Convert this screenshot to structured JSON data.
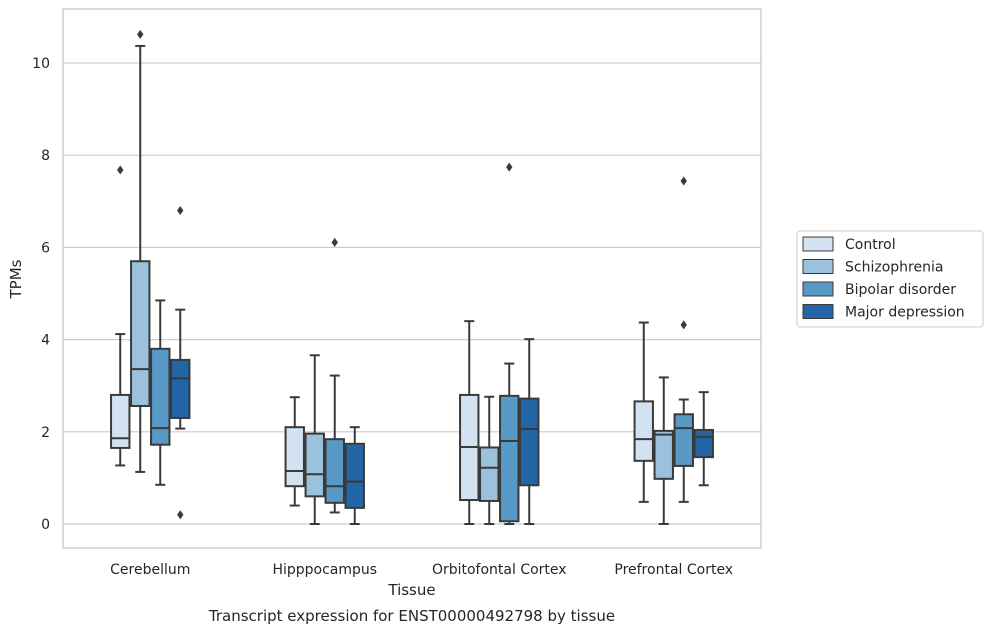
{
  "chart_data": {
    "type": "boxplot",
    "xlabel": "Tissue",
    "ylabel": "TPMs",
    "caption": "Transcript expression for ENST00000492798 by tissue",
    "ylim": [
      -0.5,
      11.2
    ],
    "yticks": [
      0,
      2,
      4,
      6,
      8,
      10
    ],
    "grid": "horizontal",
    "legend_position": "right",
    "categories": [
      "Cerebellum",
      "Hipppocampus",
      "Orbitofontal Cortex",
      "Prefrontal Cortex"
    ],
    "series": [
      {
        "name": "Control",
        "color": "#d3e2f1",
        "boxes": [
          {
            "whislo": 1.27,
            "q1": 1.65,
            "med": 1.86,
            "q3": 2.8,
            "whishi": 4.12,
            "fliers": [
              7.68
            ]
          },
          {
            "whislo": 0.4,
            "q1": 0.82,
            "med": 1.15,
            "q3": 2.1,
            "whishi": 2.75,
            "fliers": []
          },
          {
            "whislo": 0.0,
            "q1": 0.52,
            "med": 1.67,
            "q3": 2.8,
            "whishi": 4.4,
            "fliers": []
          },
          {
            "whislo": 0.48,
            "q1": 1.37,
            "med": 1.84,
            "q3": 2.66,
            "whishi": 4.37,
            "fliers": []
          }
        ]
      },
      {
        "name": "Schizophrenia",
        "color": "#9ac2dc",
        "boxes": [
          {
            "whislo": 1.13,
            "q1": 2.56,
            "med": 3.36,
            "q3": 5.7,
            "whishi": 10.37,
            "fliers": [
              10.62
            ]
          },
          {
            "whislo": 0.0,
            "q1": 0.6,
            "med": 1.08,
            "q3": 1.96,
            "whishi": 3.66,
            "fliers": []
          },
          {
            "whislo": 0.0,
            "q1": 0.5,
            "med": 1.22,
            "q3": 1.66,
            "whishi": 2.76,
            "fliers": []
          },
          {
            "whislo": 0.0,
            "q1": 0.98,
            "med": 1.94,
            "q3": 2.02,
            "whishi": 3.18,
            "fliers": []
          }
        ]
      },
      {
        "name": "Bipolar disorder",
        "color": "#5899c5",
        "boxes": [
          {
            "whislo": 0.85,
            "q1": 1.72,
            "med": 2.08,
            "q3": 3.8,
            "whishi": 4.85,
            "fliers": []
          },
          {
            "whislo": 0.25,
            "q1": 0.46,
            "med": 0.82,
            "q3": 1.84,
            "whishi": 3.22,
            "fliers": [
              6.11
            ]
          },
          {
            "whislo": 0.0,
            "q1": 0.06,
            "med": 1.8,
            "q3": 2.78,
            "whishi": 3.48,
            "fliers": [
              7.74
            ]
          },
          {
            "whislo": 0.48,
            "q1": 1.26,
            "med": 2.08,
            "q3": 2.38,
            "whishi": 2.7,
            "fliers": [
              4.32,
              7.44
            ]
          }
        ]
      },
      {
        "name": "Major depression",
        "color": "#2366a8",
        "boxes": [
          {
            "whislo": 2.07,
            "q1": 2.3,
            "med": 3.16,
            "q3": 3.56,
            "whishi": 4.65,
            "fliers": [
              0.2,
              6.8
            ]
          },
          {
            "whislo": 0.0,
            "q1": 0.35,
            "med": 0.92,
            "q3": 1.74,
            "whishi": 2.1,
            "fliers": []
          },
          {
            "whislo": 0.0,
            "q1": 0.84,
            "med": 2.06,
            "q3": 2.72,
            "whishi": 4.01,
            "fliers": []
          },
          {
            "whislo": 0.84,
            "q1": 1.45,
            "med": 1.89,
            "q3": 2.04,
            "whishi": 2.86,
            "fliers": []
          }
        ]
      }
    ]
  }
}
